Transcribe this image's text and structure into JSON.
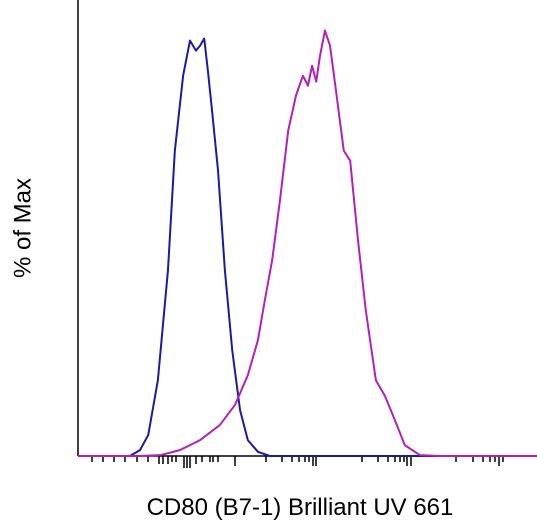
{
  "chart_data": {
    "type": "line",
    "xlabel": "CD80 (B7-1) Brilliant UV 661",
    "ylabel": "% of Max",
    "xlim": [
      0,
      100
    ],
    "ylim": [
      0,
      109
    ],
    "series": [
      {
        "color": "#1a1aa6",
        "x": [
          0,
          11.3,
          13.5,
          15.3,
          17.4,
          19.6,
          21.1,
          22.9,
          24.4,
          25.7,
          26.6,
          27.5,
          28.3,
          29.2,
          30.5,
          32.0,
          33.6,
          35.3,
          37.0,
          39.2,
          41.8,
          100
        ],
        "values": [
          0,
          0,
          1.4,
          5.0,
          18.1,
          44.4,
          73.0,
          90.9,
          99.3,
          96.9,
          98.1,
          99.8,
          92.1,
          82.6,
          68.3,
          44.4,
          25.3,
          11.0,
          3.8,
          1.0,
          0,
          0
        ]
      },
      {
        "color": "#b31fb8",
        "x": [
          0,
          13.5,
          17.9,
          22.2,
          26.6,
          30.9,
          34.2,
          37.0,
          39.2,
          40.7,
          42.3,
          44.0,
          45.8,
          47.5,
          49.0,
          50.1,
          51.0,
          51.9,
          52.7,
          53.8,
          54.9,
          56.2,
          57.9,
          59.3,
          61.0,
          62.7,
          64.9,
          66.9,
          69.1,
          71.2,
          74.5,
          78.9,
          100
        ],
        "values": [
          0,
          0,
          0.2,
          1.4,
          3.8,
          7.4,
          12.2,
          19.3,
          27.7,
          37.2,
          46.8,
          61.1,
          77.8,
          86.2,
          90.9,
          88.5,
          93.3,
          89.5,
          95.5,
          101.7,
          98.1,
          87.4,
          73.0,
          70.6,
          51.6,
          34.8,
          18.1,
          14.3,
          8.4,
          2.6,
          0.2,
          0,
          0
        ]
      }
    ]
  }
}
